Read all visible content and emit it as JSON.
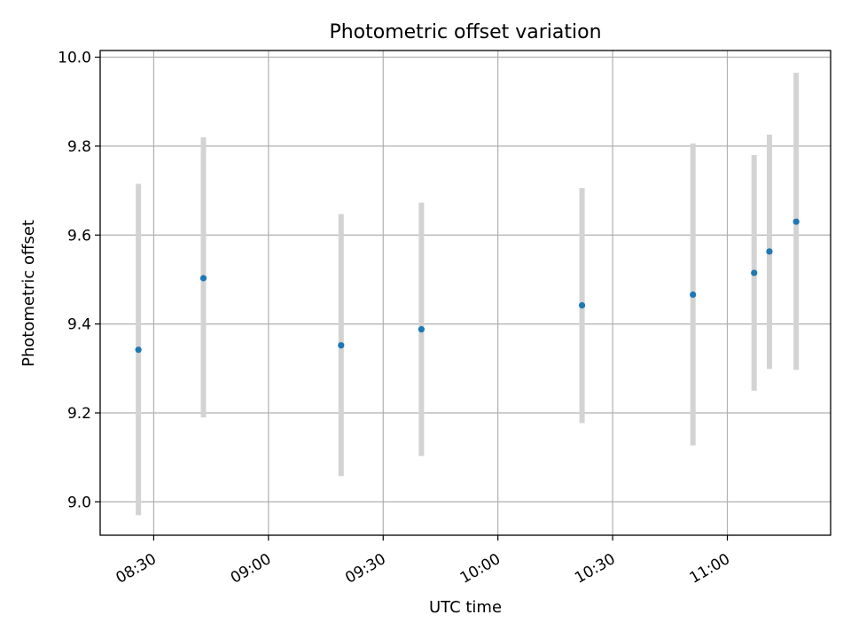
{
  "chart_data": {
    "type": "scatter",
    "title": "Photometric offset variation",
    "xlabel": "UTC time",
    "ylabel": "Photometric offset",
    "x_ticks": [
      "08:30",
      "09:00",
      "09:30",
      "10:00",
      "10:30",
      "11:00"
    ],
    "y_ticks": [
      "9.0",
      "9.2",
      "9.4",
      "9.6",
      "9.8",
      "10.0"
    ],
    "xlim": [
      "08:16",
      "11:27"
    ],
    "ylim": [
      8.925,
      10.015
    ],
    "grid": true,
    "points": [
      {
        "x": "08:26",
        "y": 9.342,
        "err_low": 8.97,
        "err_high": 9.715
      },
      {
        "x": "08:43",
        "y": 9.503,
        "err_low": 9.19,
        "err_high": 9.82
      },
      {
        "x": "09:19",
        "y": 9.352,
        "err_low": 9.058,
        "err_high": 9.647
      },
      {
        "x": "09:40",
        "y": 9.388,
        "err_low": 9.103,
        "err_high": 9.673
      },
      {
        "x": "10:22",
        "y": 9.442,
        "err_low": 9.177,
        "err_high": 9.706
      },
      {
        "x": "10:51",
        "y": 9.466,
        "err_low": 9.127,
        "err_high": 9.806
      },
      {
        "x": "11:07",
        "y": 9.515,
        "err_low": 9.25,
        "err_high": 9.78
      },
      {
        "x": "11:11",
        "y": 9.563,
        "err_low": 9.299,
        "err_high": 9.826
      },
      {
        "x": "11:18",
        "y": 9.63,
        "err_low": 9.297,
        "err_high": 9.965
      }
    ],
    "colors": {
      "point": "#1f77b4",
      "errorbar": "#d3d3d3",
      "grid": "#b0b0b0"
    }
  }
}
